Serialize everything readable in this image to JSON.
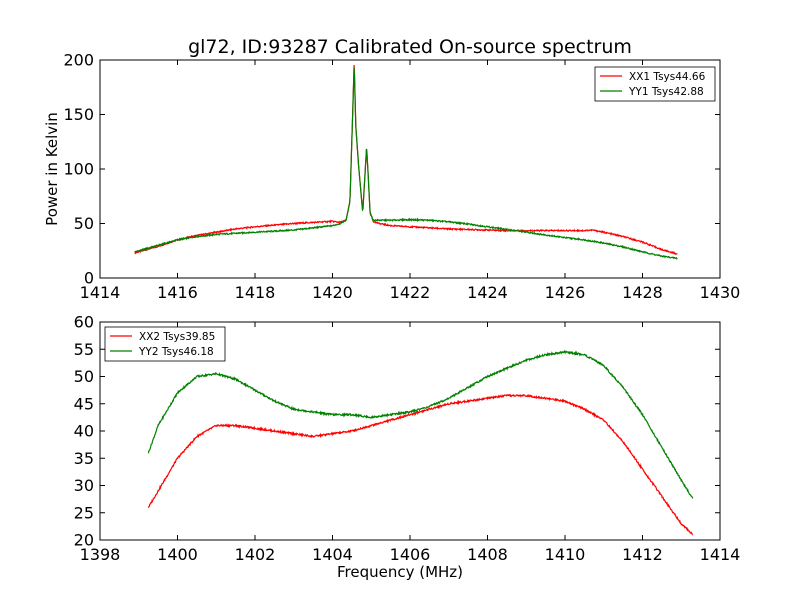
{
  "figure": {
    "title": "gl72, ID:93287 Calibrated On-source spectrum"
  },
  "chart_data": [
    {
      "type": "line",
      "title": "gl72, ID:93287 Calibrated On-source spectrum",
      "xlabel": "",
      "ylabel": "Power in Kelvin",
      "xlim": [
        1414,
        1430
      ],
      "ylim": [
        0,
        200
      ],
      "x_ticks": [
        "1414",
        "1416",
        "1418",
        "1420",
        "1422",
        "1424",
        "1426",
        "1428",
        "1430"
      ],
      "y_ticks": [
        "0",
        "50",
        "100",
        "150",
        "200"
      ],
      "grid": false,
      "legend_position": "top-right",
      "series": [
        {
          "name": "XX1 Tsys44.66",
          "color": "#ff0000",
          "x": [
            1414.9,
            1415.5,
            1416.0,
            1416.5,
            1417.0,
            1417.5,
            1418.0,
            1418.5,
            1419.0,
            1419.5,
            1420.0,
            1420.2,
            1420.35,
            1420.45,
            1420.52,
            1420.56,
            1420.6,
            1420.68,
            1420.78,
            1420.83,
            1420.88,
            1420.92,
            1420.97,
            1421.05,
            1421.2,
            1421.5,
            1422.0,
            1422.5,
            1423.0,
            1423.5,
            1424.0,
            1424.5,
            1425.0,
            1425.5,
            1426.0,
            1426.5,
            1426.7,
            1427.0,
            1427.5,
            1428.0,
            1428.5,
            1428.9
          ],
          "y": [
            23,
            29,
            35,
            39,
            42,
            45,
            47,
            48.5,
            50,
            51,
            52,
            51,
            53,
            70,
            150,
            199,
            140,
            100,
            60,
            90,
            120,
            95,
            60,
            52,
            50,
            48,
            47,
            46,
            45,
            44.5,
            44,
            43.5,
            43.5,
            43.5,
            43.5,
            43.5,
            44,
            42,
            38,
            33,
            26,
            22
          ]
        },
        {
          "name": "YY1 Tsys42.88",
          "color": "#008000",
          "x": [
            1414.9,
            1415.5,
            1416.0,
            1416.5,
            1417.0,
            1417.5,
            1418.0,
            1418.5,
            1419.0,
            1419.5,
            1420.0,
            1420.2,
            1420.35,
            1420.45,
            1420.52,
            1420.56,
            1420.6,
            1420.68,
            1420.78,
            1420.83,
            1420.88,
            1420.92,
            1420.97,
            1421.05,
            1421.2,
            1421.5,
            1422.0,
            1422.5,
            1423.0,
            1423.5,
            1424.0,
            1424.5,
            1425.0,
            1425.5,
            1426.0,
            1426.5,
            1427.0,
            1427.5,
            1428.0,
            1428.5,
            1428.9
          ],
          "y": [
            24,
            30,
            35,
            38,
            40,
            41,
            42,
            43,
            44,
            46,
            48,
            50,
            53,
            70,
            150,
            197,
            140,
            100,
            60,
            90,
            120,
            95,
            60,
            53,
            53,
            53,
            53.5,
            53,
            51.5,
            49.5,
            47,
            44.5,
            42,
            39.5,
            37,
            35,
            32,
            28.5,
            24,
            20,
            18
          ]
        }
      ]
    },
    {
      "type": "line",
      "title": "",
      "xlabel": "Frequency (MHz)",
      "ylabel": "",
      "xlim": [
        1398,
        1414
      ],
      "ylim": [
        20,
        60
      ],
      "x_ticks": [
        "1398",
        "1400",
        "1402",
        "1404",
        "1406",
        "1408",
        "1410",
        "1412",
        "1414"
      ],
      "y_ticks": [
        "20",
        "25",
        "30",
        "35",
        "40",
        "45",
        "50",
        "55",
        "60"
      ],
      "grid": false,
      "legend_position": "top-left",
      "series": [
        {
          "name": "XX2 Tsys39.85",
          "color": "#ff0000",
          "x": [
            1399.25,
            1399.5,
            1400.0,
            1400.5,
            1401.0,
            1401.5,
            1402.0,
            1402.5,
            1403.0,
            1403.5,
            1404.0,
            1404.5,
            1405.0,
            1405.5,
            1406.0,
            1406.5,
            1407.0,
            1407.5,
            1408.0,
            1408.5,
            1409.0,
            1409.5,
            1410.0,
            1410.5,
            1411.0,
            1411.5,
            1412.0,
            1412.5,
            1413.0,
            1413.3
          ],
          "y": [
            26,
            29,
            35,
            39,
            41,
            41,
            40.5,
            40,
            39.5,
            39,
            39.5,
            40,
            41,
            42,
            43,
            44,
            45,
            45.5,
            46,
            46.5,
            46.5,
            46,
            45.5,
            44,
            42,
            38,
            33,
            28,
            23,
            21
          ]
        },
        {
          "name": "YY2 Tsys46.18",
          "color": "#008000",
          "x": [
            1399.25,
            1399.5,
            1400.0,
            1400.5,
            1401.0,
            1401.5,
            1402.0,
            1402.5,
            1403.0,
            1403.5,
            1404.0,
            1404.5,
            1405.0,
            1405.5,
            1406.0,
            1406.5,
            1407.0,
            1407.5,
            1408.0,
            1408.5,
            1409.0,
            1409.5,
            1410.0,
            1410.5,
            1411.0,
            1411.5,
            1412.0,
            1412.5,
            1413.0,
            1413.3
          ],
          "y": [
            36,
            41,
            47,
            50,
            50.5,
            49.5,
            47.5,
            45.5,
            44,
            43.5,
            43,
            43,
            42.5,
            43,
            43.5,
            44.5,
            46,
            48,
            50,
            51.5,
            53,
            54,
            54.5,
            54,
            52,
            48,
            43,
            37,
            31,
            27.5
          ]
        }
      ]
    }
  ]
}
